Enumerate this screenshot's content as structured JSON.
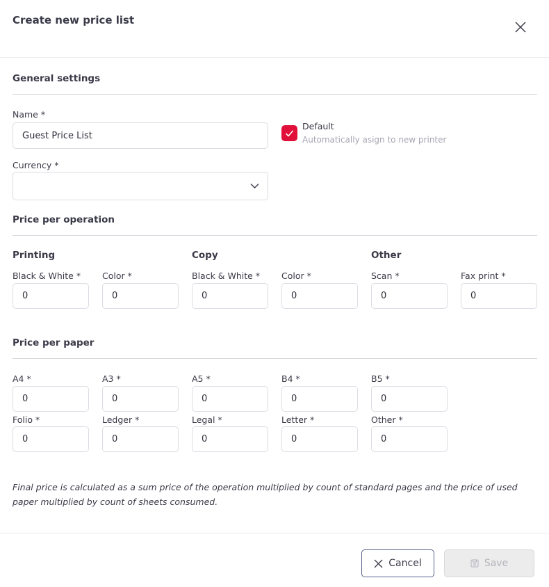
{
  "dialog": {
    "title": "Create new price list"
  },
  "general": {
    "title": "General settings",
    "name_label": "Name *",
    "name_value": "Guest Price List",
    "currency_label": "Currency *",
    "currency_value": "",
    "default_label": "Default",
    "default_hint": "Automatically asign to new printer",
    "default_checked": true,
    "accent": "#e0103a"
  },
  "operation": {
    "title": "Price per operation",
    "groups": [
      {
        "title": "Printing",
        "fields": [
          {
            "label": "Black & White *",
            "value": "0"
          },
          {
            "label": "Color *",
            "value": "0"
          }
        ]
      },
      {
        "title": "Copy",
        "fields": [
          {
            "label": "Black & White *",
            "value": "0"
          },
          {
            "label": "Color *",
            "value": "0"
          }
        ]
      },
      {
        "title": "Other",
        "fields": [
          {
            "label": "Scan *",
            "value": "0"
          },
          {
            "label": "Fax print *",
            "value": "0"
          }
        ]
      }
    ]
  },
  "paper": {
    "title": "Price per paper",
    "fields": [
      {
        "label": "A4 *",
        "value": "0"
      },
      {
        "label": "A3 *",
        "value": "0"
      },
      {
        "label": "A5 *",
        "value": "0"
      },
      {
        "label": "B4 *",
        "value": "0"
      },
      {
        "label": "B5 *",
        "value": "0"
      },
      {
        "label": "Folio *",
        "value": "0"
      },
      {
        "label": "Ledger *",
        "value": "0"
      },
      {
        "label": "Legal *",
        "value": "0"
      },
      {
        "label": "Letter *",
        "value": "0"
      },
      {
        "label": "Other *",
        "value": "0"
      }
    ]
  },
  "note": "Final price is calculated as a sum price of the operation multiplied by count of standard pages and the price of used paper multiplied by count of sheets consumed.",
  "footer": {
    "cancel_label": "Cancel",
    "save_label": "Save"
  }
}
